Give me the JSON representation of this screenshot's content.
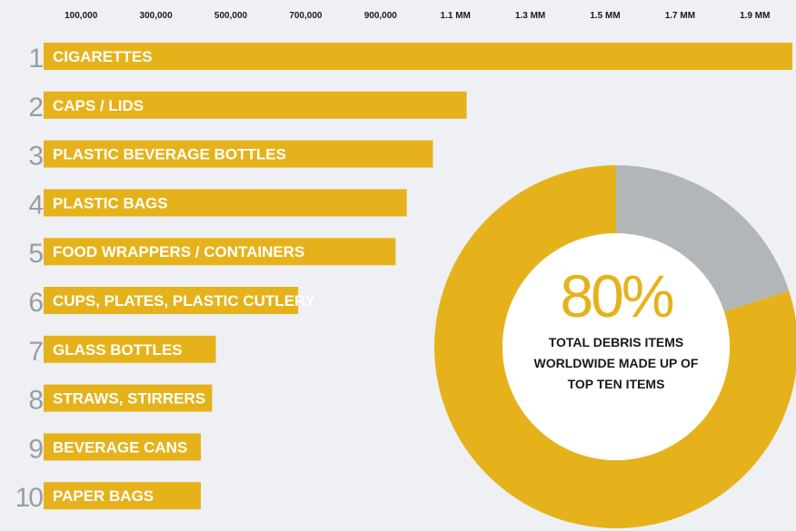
{
  "colors": {
    "bar": "#e6b21b",
    "rank": "#9a9ea3",
    "gray": "#b3b6b9",
    "background": "#eef0f4"
  },
  "chart_data": [
    {
      "type": "bar",
      "orientation": "horizontal",
      "x_tick_labels": [
        "100,000",
        "300,000",
        "500,000",
        "700,000",
        "900,000",
        "1.1 MM",
        "1.3 MM",
        "1.5 MM",
        "1.7 MM",
        "1.9 MM"
      ],
      "x_tick_values": [
        100000,
        300000,
        500000,
        700000,
        900000,
        1100000,
        1300000,
        1500000,
        1700000,
        1900000
      ],
      "xlim": [
        0,
        2000000
      ],
      "grid": false,
      "categories": [
        "CIGARETTES",
        "CAPS / LIDS",
        "PLASTIC BEVERAGE BOTTLES",
        "PLASTIC BAGS",
        "FOOD WRAPPERS / CONTAINERS",
        "CUPS, PLATES, PLASTIC CUTLERY",
        "GLASS BOTTLES",
        "STRAWS, STIRRERS",
        "BEVERAGE CANS",
        "PAPER BAGS"
      ],
      "ranks": [
        "1",
        "2",
        "3",
        "4",
        "5",
        "6",
        "7",
        "8",
        "9",
        "10"
      ],
      "values": [
        2000000,
        1130000,
        1040000,
        970000,
        940000,
        680000,
        460000,
        450000,
        420000,
        420000
      ]
    },
    {
      "type": "pie",
      "style": "donut",
      "slices": [
        {
          "value": 80,
          "color": "#e6b21b"
        },
        {
          "value": 20,
          "color": "#b3b6b9"
        }
      ],
      "center_value": "80%",
      "center_caption": [
        "TOTAL DEBRIS ITEMS",
        "WORLDWIDE MADE UP OF",
        "TOP TEN ITEMS"
      ]
    }
  ]
}
